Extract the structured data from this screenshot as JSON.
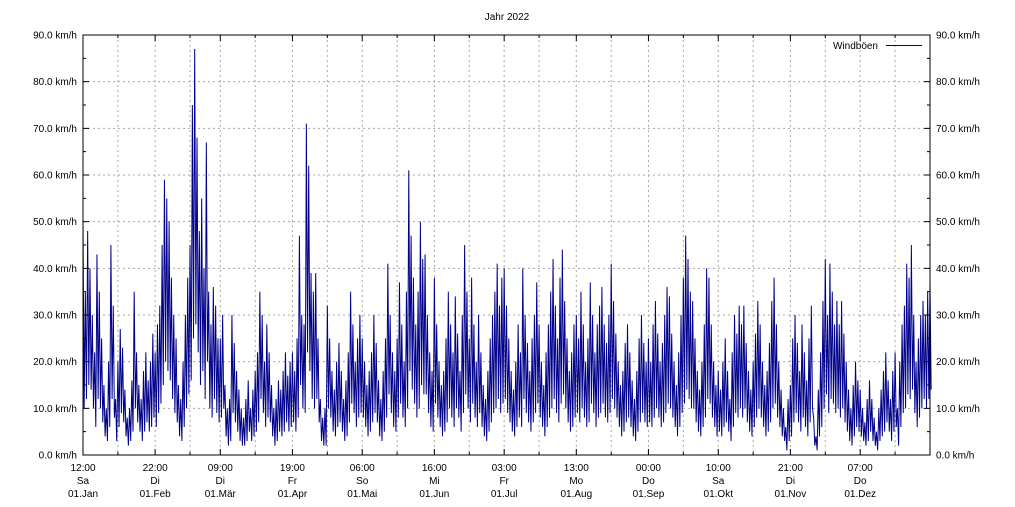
{
  "chart_data": {
    "type": "line",
    "title": "Jahr 2022",
    "unit": "km/h",
    "grid": true,
    "legend_position": "top-right",
    "line_color": "#00008b",
    "grid_color": "#a8a8a8",
    "axis_color": "#000000",
    "background_color": "#ffffff",
    "ylim": [
      0,
      90
    ],
    "ytick_step": 10,
    "ytick_labels": [
      "0.0 km/h",
      "10.0 km/h",
      "20.0 km/h",
      "30.0 km/h",
      "40.0 km/h",
      "50.0 km/h",
      "60.0 km/h",
      "70.0 km/h",
      "80.0 km/h",
      "90.0 km/h"
    ],
    "xtick_labels": [
      {
        "time": "12:00",
        "weekday": "Sa",
        "date": "01.Jan"
      },
      {
        "time": "22:00",
        "weekday": "Di",
        "date": "01.Feb"
      },
      {
        "time": "09:00",
        "weekday": "Di",
        "date": "01.Mär"
      },
      {
        "time": "19:00",
        "weekday": "Fr",
        "date": "01.Apr"
      },
      {
        "time": "06:00",
        "weekday": "So",
        "date": "01.Mai"
      },
      {
        "time": "16:00",
        "weekday": "Mi",
        "date": "01.Jun"
      },
      {
        "time": "03:00",
        "weekday": "Fr",
        "date": "01.Jul"
      },
      {
        "time": "13:00",
        "weekday": "Mo",
        "date": "01.Aug"
      },
      {
        "time": "00:00",
        "weekday": "Do",
        "date": "01.Sep"
      },
      {
        "time": "10:00",
        "weekday": "Sa",
        "date": "01.Okt"
      },
      {
        "time": "21:00",
        "weekday": "Di",
        "date": "01.Nov"
      },
      {
        "time": "07:00",
        "weekday": "Do",
        "date": "01.Dez"
      }
    ],
    "month_days": [
      31,
      28,
      31,
      30,
      31,
      30,
      31,
      31,
      30,
      31,
      30,
      31
    ],
    "series": [
      {
        "name": "Windböen",
        "x_unit": "day-of-year 2022",
        "daily_max": [
          50,
          35,
          48,
          40,
          30,
          22,
          43,
          35,
          25,
          15,
          10,
          20,
          45,
          32,
          12,
          20,
          27,
          23,
          14,
          8,
          10,
          16,
          35,
          22,
          15,
          12,
          18,
          22,
          16,
          20,
          26,
          22,
          28,
          32,
          45,
          59,
          55,
          50,
          38,
          30,
          25,
          15,
          12,
          20,
          30,
          38,
          45,
          75,
          87,
          68,
          48,
          55,
          40,
          67,
          35,
          28,
          36,
          32,
          25,
          25,
          30,
          15,
          10,
          12,
          30,
          24,
          18,
          14,
          10,
          8,
          12,
          16,
          10,
          14,
          18,
          22,
          35,
          30,
          20,
          28,
          22,
          15,
          10,
          12,
          16,
          14,
          18,
          22,
          17,
          20,
          22,
          18,
          25,
          47,
          30,
          28,
          71,
          62,
          39,
          35,
          39,
          25,
          12,
          8,
          10,
          32,
          25,
          18,
          14,
          20,
          24,
          18,
          12,
          16,
          22,
          35,
          28,
          20,
          25,
          30,
          25,
          20,
          15,
          18,
          22,
          30,
          24,
          16,
          12,
          18,
          25,
          41,
          30,
          22,
          18,
          25,
          37,
          28,
          20,
          35,
          61,
          47,
          38,
          28,
          35,
          50,
          42,
          43,
          30,
          22,
          18,
          38,
          28,
          20,
          15,
          18,
          25,
          35,
          28,
          22,
          34,
          26,
          18,
          30,
          45,
          35,
          25,
          38,
          28,
          20,
          30,
          22,
          15,
          12,
          18,
          25,
          30,
          35,
          41,
          32,
          38,
          40,
          32,
          25,
          18,
          14,
          20,
          28,
          22,
          40,
          30,
          24,
          18,
          25,
          30,
          37,
          28,
          20,
          15,
          22,
          28,
          35,
          42,
          32,
          25,
          38,
          44,
          33,
          25,
          18,
          22,
          28,
          30,
          25,
          35,
          28,
          20,
          25,
          37,
          30,
          22,
          28,
          32,
          36,
          28,
          24,
          30,
          41,
          33,
          26,
          20,
          15,
          18,
          24,
          28,
          22,
          16,
          12,
          18,
          25,
          30,
          24,
          20,
          25,
          20,
          28,
          33,
          26,
          20,
          24,
          30,
          36,
          34,
          26,
          20,
          15,
          22,
          30,
          38,
          47,
          42,
          35,
          33,
          25,
          18,
          14,
          20,
          28,
          40,
          38,
          28,
          20,
          15,
          18,
          14,
          20,
          25,
          18,
          12,
          22,
          30,
          26,
          32,
          28,
          32,
          24,
          18,
          14,
          20,
          26,
          33,
          28,
          20,
          15,
          18,
          24,
          33,
          38,
          28,
          20,
          14,
          10,
          6,
          12,
          15,
          25,
          30,
          24,
          18,
          28,
          22,
          16,
          25,
          32,
          8,
          4,
          14,
          22,
          33,
          42,
          30,
          41,
          35,
          28,
          33,
          28,
          33,
          26,
          20,
          14,
          10,
          15,
          20,
          16,
          14,
          10,
          7,
          12,
          16,
          12,
          8,
          5,
          10,
          14,
          18,
          22,
          16,
          12,
          18,
          22,
          10,
          20,
          28,
          32,
          41,
          38,
          45,
          30,
          20,
          25,
          30,
          33,
          30,
          35,
          37
        ],
        "daily_min": [
          10,
          12,
          15,
          14,
          10,
          6,
          12,
          10,
          7,
          4,
          3,
          6,
          12,
          8,
          3,
          6,
          9,
          7,
          4,
          2,
          3,
          5,
          10,
          7,
          5,
          3,
          5,
          7,
          5,
          6,
          8,
          6,
          9,
          11,
          15,
          20,
          18,
          16,
          12,
          9,
          7,
          4,
          3,
          6,
          10,
          13,
          16,
          25,
          28,
          22,
          15,
          18,
          12,
          20,
          10,
          8,
          12,
          9,
          7,
          8,
          10,
          4,
          2,
          3,
          9,
          7,
          5,
          3,
          2,
          2,
          3,
          5,
          3,
          4,
          5,
          7,
          12,
          9,
          6,
          8,
          7,
          4,
          2,
          3,
          5,
          4,
          5,
          7,
          5,
          6,
          7,
          5,
          8,
          15,
          10,
          9,
          22,
          18,
          12,
          10,
          12,
          7,
          3,
          2,
          2,
          10,
          8,
          5,
          4,
          6,
          7,
          5,
          3,
          4,
          7,
          11,
          9,
          6,
          8,
          9,
          8,
          6,
          4,
          5,
          7,
          9,
          7,
          4,
          3,
          5,
          8,
          13,
          9,
          6,
          5,
          8,
          11,
          8,
          6,
          10,
          18,
          14,
          11,
          8,
          10,
          15,
          13,
          13,
          9,
          6,
          5,
          11,
          8,
          6,
          4,
          5,
          7,
          10,
          8,
          6,
          10,
          8,
          5,
          9,
          13,
          10,
          7,
          11,
          8,
          6,
          9,
          6,
          4,
          3,
          5,
          7,
          9,
          10,
          12,
          9,
          11,
          12,
          9,
          7,
          5,
          4,
          6,
          8,
          6,
          12,
          9,
          7,
          5,
          7,
          9,
          11,
          8,
          6,
          4,
          6,
          8,
          10,
          12,
          9,
          7,
          11,
          13,
          10,
          7,
          5,
          6,
          8,
          9,
          7,
          10,
          8,
          6,
          7,
          11,
          9,
          6,
          8,
          9,
          11,
          8,
          7,
          9,
          12,
          10,
          8,
          6,
          4,
          5,
          7,
          8,
          6,
          4,
          3,
          5,
          7,
          9,
          7,
          6,
          7,
          6,
          8,
          10,
          8,
          6,
          7,
          9,
          11,
          10,
          8,
          6,
          4,
          6,
          9,
          11,
          14,
          12,
          10,
          10,
          7,
          5,
          4,
          6,
          8,
          12,
          11,
          8,
          6,
          4,
          5,
          4,
          6,
          7,
          5,
          3,
          6,
          9,
          8,
          10,
          8,
          10,
          7,
          5,
          4,
          6,
          8,
          10,
          8,
          6,
          4,
          5,
          7,
          10,
          11,
          8,
          6,
          4,
          3,
          1,
          3,
          4,
          7,
          9,
          7,
          5,
          8,
          6,
          4,
          7,
          10,
          2,
          1,
          4,
          6,
          10,
          13,
          9,
          12,
          11,
          9,
          10,
          8,
          10,
          7,
          5,
          3,
          2,
          4,
          6,
          5,
          4,
          3,
          2,
          3,
          5,
          3,
          2,
          1,
          3,
          4,
          5,
          7,
          5,
          3,
          5,
          6,
          2,
          6,
          9,
          10,
          13,
          12,
          14,
          9,
          6,
          8,
          10,
          12,
          10,
          12,
          14
        ]
      }
    ],
    "legend": {
      "label": "Windböen"
    }
  }
}
